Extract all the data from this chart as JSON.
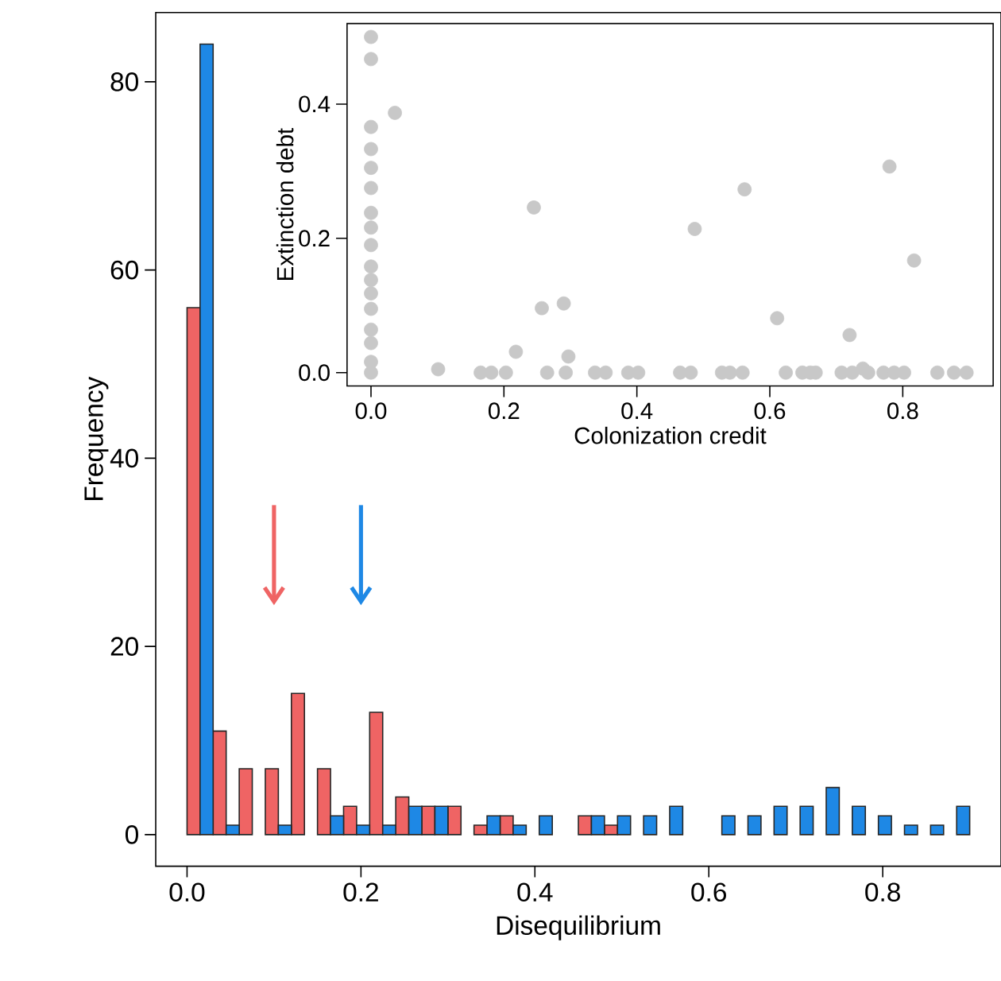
{
  "chart_data": [
    {
      "type": "histogram",
      "xlabel": "Disequilibrium",
      "ylabel": "Frequency",
      "bins": [
        0,
        0.03,
        0.06,
        0.09,
        0.12,
        0.15,
        0.18,
        0.21,
        0.24,
        0.27,
        0.3,
        0.33,
        0.36,
        0.39,
        0.42,
        0.45,
        0.48,
        0.51,
        0.54,
        0.57,
        0.6,
        0.63,
        0.66,
        0.69,
        0.72,
        0.75,
        0.78,
        0.81,
        0.84,
        0.87,
        0.9
      ],
      "series": [
        {
          "color": "#ef6464",
          "values": [
            56,
            11,
            7,
            7,
            15,
            7,
            3,
            13,
            4,
            3,
            3,
            1,
            2,
            0,
            0,
            2,
            1,
            0,
            0,
            0,
            0,
            0,
            0,
            0,
            0,
            0,
            0,
            0,
            0,
            0
          ]
        },
        {
          "color": "#1e88e5",
          "values": [
            84,
            1,
            0,
            1,
            0,
            2,
            1,
            1,
            3,
            3,
            0,
            2,
            1,
            2,
            0,
            2,
            2,
            2,
            3,
            0,
            2,
            2,
            3,
            3,
            5,
            3,
            2,
            1,
            1,
            3
          ]
        }
      ],
      "xlim": [
        -0.036,
        0.936
      ],
      "ylim": [
        -3.36,
        87.36
      ],
      "xticks": [
        {
          "value": 0,
          "label": "0.0"
        },
        {
          "value": 0.2,
          "label": "0.2"
        },
        {
          "value": 0.4,
          "label": "0.4"
        },
        {
          "value": 0.6,
          "label": "0.6"
        },
        {
          "value": 0.8,
          "label": "0.8"
        }
      ],
      "yticks": [
        0,
        20,
        40,
        60,
        80
      ],
      "ref_lines": [
        {
          "axis": "x",
          "value": 0.1,
          "color": "#ef6464"
        },
        {
          "axis": "x",
          "value": 0.2,
          "color": "#1e88e5"
        }
      ]
    },
    {
      "type": "scatter",
      "xlabel": "Colonization credit",
      "ylabel": "Extinction debt",
      "marker": "circle",
      "color": "#c8c8c8",
      "x": [
        0,
        0,
        0,
        0,
        0,
        0,
        0,
        0,
        0,
        0,
        0,
        0,
        0,
        0,
        0,
        0,
        0,
        0.036,
        0.101,
        0.165,
        0.181,
        0.203,
        0.218,
        0.245,
        0.257,
        0.29,
        0.297,
        0.265,
        0.293,
        0.337,
        0.353,
        0.387,
        0.402,
        0.465,
        0.481,
        0.487,
        0.528,
        0.54,
        0.559,
        0.562,
        0.611,
        0.624,
        0.649,
        0.661,
        0.669,
        0.708,
        0.72,
        0.724,
        0.74,
        0.748,
        0.771,
        0.78,
        0.787,
        0.802,
        0.817,
        0.852,
        0.877,
        0.896
      ],
      "values": [
        0.5,
        0.467,
        0.366,
        0.333,
        0.305,
        0.275,
        0.238,
        0.216,
        0.19,
        0.158,
        0.138,
        0.118,
        0.095,
        0.064,
        0.044,
        0.016,
        0,
        0.387,
        0.005,
        0,
        0,
        0,
        0.031,
        0.246,
        0.096,
        0.103,
        0.024,
        0,
        0,
        0,
        0,
        0,
        0,
        0,
        0,
        0.214,
        0,
        0,
        0,
        0.273,
        0.081,
        0,
        0,
        0,
        0,
        0,
        0.056,
        0,
        0.006,
        0,
        0,
        0.307,
        0,
        0,
        0.167,
        0,
        0,
        0
      ],
      "xlim": [
        -0.036,
        0.936
      ],
      "ylim": [
        -0.02,
        0.52
      ],
      "xticks": [
        {
          "value": 0,
          "label": "0.0"
        },
        {
          "value": 0.2,
          "label": "0.2"
        },
        {
          "value": 0.4,
          "label": "0.4"
        },
        {
          "value": 0.6,
          "label": "0.6"
        },
        {
          "value": 0.8,
          "label": "0.8"
        }
      ],
      "yticks": [
        {
          "value": 0,
          "label": "0.0"
        },
        {
          "value": 0.2,
          "label": "0.2"
        },
        {
          "value": 0.4,
          "label": "0.4"
        }
      ]
    }
  ]
}
